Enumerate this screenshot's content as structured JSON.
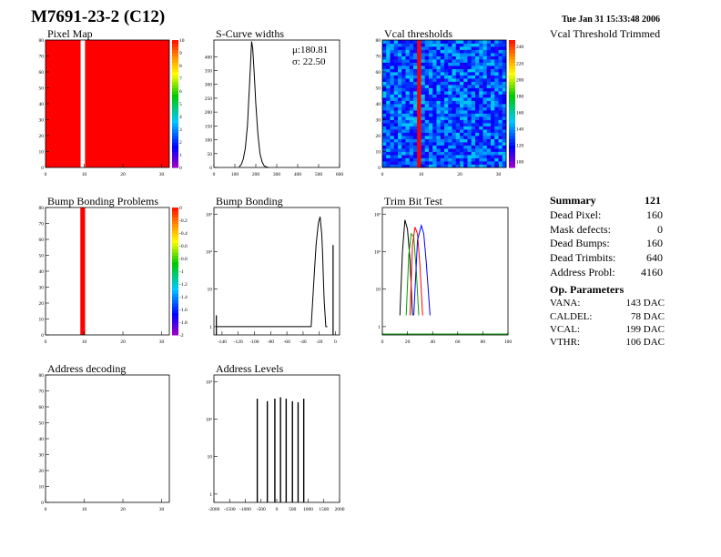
{
  "header": {
    "title": "M7691-23-2 (C12)",
    "timestamp": "Tue Jan 31 15:33:48 2006",
    "vcal_trimmed_label": "Vcal Threshold Trimmed"
  },
  "summary": {
    "heading": "Summary",
    "heading_value": "121",
    "rows": [
      {
        "label": "Dead Pixel:",
        "value": "160"
      },
      {
        "label": "Mask defects:",
        "value": "0"
      },
      {
        "label": "Dead Bumps:",
        "value": "160"
      },
      {
        "label": "Dead Trimbits:",
        "value": "640"
      },
      {
        "label": "Address Probl:",
        "value": "4160"
      }
    ]
  },
  "op_params": {
    "heading": "Op. Parameters",
    "rows": [
      {
        "label": "VANA:",
        "value": "143 DAC"
      },
      {
        "label": "CALDEL:",
        "value": "78 DAC"
      },
      {
        "label": "VCAL:",
        "value": "199 DAC"
      },
      {
        "label": "VTHR:",
        "value": "106 DAC"
      }
    ]
  },
  "colors": {
    "red": "#ff1a1a",
    "blue_field": "#3c6ed6",
    "frame": "#000000"
  },
  "chart_data": [
    {
      "id": "pixel-map",
      "type": "heatmap",
      "title": "Pixel Map",
      "xlim": [
        0,
        32
      ],
      "ylim": [
        0,
        80
      ],
      "x_ticks": [
        "0",
        "10",
        "20",
        "30"
      ],
      "y_ticks": [
        "0",
        "10",
        "20",
        "30",
        "40",
        "50",
        "60",
        "70",
        "80"
      ],
      "z_ticks": [
        "0",
        "1",
        "2",
        "3",
        "4",
        "5",
        "6",
        "7",
        "8",
        "9",
        "10"
      ],
      "zlim": [
        0,
        10
      ],
      "fill_value": 10,
      "empty_columns": [
        9
      ]
    },
    {
      "id": "s-curve",
      "type": "line",
      "title": "S-Curve widths",
      "xlim": [
        0,
        600
      ],
      "ylim": [
        0,
        460
      ],
      "x_ticks": [
        "0",
        "100",
        "200",
        "300",
        "400",
        "500",
        "600"
      ],
      "y_ticks": [
        "0",
        "50",
        "100",
        "150",
        "200",
        "250",
        "300",
        "350",
        "400"
      ],
      "stats": [
        "μ:180.81",
        "σ: 22.50"
      ],
      "x": [
        120,
        130,
        140,
        150,
        160,
        170,
        175,
        180,
        185,
        190,
        195,
        200,
        210,
        220,
        230,
        240,
        250,
        260
      ],
      "y": [
        2,
        10,
        30,
        70,
        150,
        300,
        380,
        455,
        430,
        370,
        300,
        230,
        120,
        50,
        20,
        6,
        2,
        0
      ]
    },
    {
      "id": "vcal-thresholds",
      "type": "heatmap",
      "title": "Vcal thresholds",
      "xlim": [
        0,
        32
      ],
      "ylim": [
        0,
        80
      ],
      "x_ticks": [
        "0",
        "10",
        "20",
        "30"
      ],
      "y_ticks": [
        "0",
        "10",
        "20",
        "30",
        "40",
        "50",
        "60",
        "70",
        "80"
      ],
      "z_ticks": [
        "100",
        "120",
        "140",
        "160",
        "180",
        "200",
        "220",
        "240"
      ],
      "zlim": [
        93,
        248
      ],
      "typical_value": 130,
      "hot_columns": [
        9
      ],
      "hot_value": 248
    },
    {
      "id": "bump-bonding-problems",
      "type": "heatmap",
      "title": "Bump Bonding Problems",
      "xlim": [
        0,
        32
      ],
      "ylim": [
        0,
        80
      ],
      "x_ticks": [
        "0",
        "10",
        "20",
        "30"
      ],
      "y_ticks": [
        "0",
        "10",
        "20",
        "30",
        "40",
        "50",
        "60",
        "70",
        "80"
      ],
      "z_ticks": [
        "0",
        "-0.2",
        "-0.4",
        "-0.6",
        "-0.8",
        "-1",
        "-1.2",
        "-1.4",
        "-1.6",
        "-1.8",
        "-2"
      ],
      "zlim": [
        -2,
        0
      ],
      "filled_columns": [
        9
      ]
    },
    {
      "id": "bump-bonding",
      "type": "line",
      "title": "Bump Bonding",
      "log_y": true,
      "xlim": [
        -150,
        5
      ],
      "ylim": [
        0.6,
        1500
      ],
      "x_ticks": [
        "-140",
        "-120",
        "-100",
        "-80",
        "-60",
        "-40",
        "-20",
        "0"
      ],
      "y_ticks": [
        "1",
        "10",
        "10²",
        "10³"
      ],
      "x": [
        -147,
        -30,
        -26,
        -24,
        -22,
        -21,
        -20,
        -19,
        -18,
        -17,
        -16,
        -15,
        -14,
        -12,
        -10
      ],
      "y": [
        1,
        1,
        30,
        150,
        400,
        600,
        700,
        850,
        500,
        300,
        100,
        20,
        5,
        1,
        1
      ],
      "spikes": [
        {
          "x": -147,
          "y": 2
        },
        {
          "x": -3,
          "y": 150
        }
      ]
    },
    {
      "id": "trim-bit-test",
      "type": "line",
      "title": "Trim Bit Test",
      "log_y": true,
      "xlim": [
        0,
        100
      ],
      "ylim": [
        0.6,
        1500
      ],
      "x_ticks": [
        "0",
        "20",
        "40",
        "60",
        "80",
        "100"
      ],
      "y_ticks": [
        "1",
        "10",
        "10²",
        "10³"
      ],
      "series": [
        {
          "color": "#000000",
          "x": [
            14,
            16,
            18,
            20,
            22,
            24
          ],
          "y": [
            2,
            100,
            700,
            400,
            60,
            2
          ]
        },
        {
          "color": "#00a000",
          "x": [
            19,
            21,
            23,
            25,
            27,
            29
          ],
          "y": [
            2,
            80,
            300,
            250,
            30,
            2
          ]
        },
        {
          "color": "#ff0000",
          "x": [
            22,
            24,
            26,
            28,
            30,
            32
          ],
          "y": [
            2,
            150,
            450,
            300,
            40,
            2
          ]
        },
        {
          "color": "#0000ff",
          "x": [
            25,
            28,
            31,
            33,
            35,
            38
          ],
          "y": [
            2,
            200,
            500,
            300,
            50,
            2
          ]
        }
      ]
    },
    {
      "id": "address-decoding",
      "type": "heatmap",
      "title": "Address decoding",
      "xlim": [
        0,
        32
      ],
      "ylim": [
        0,
        80
      ],
      "x_ticks": [
        "0",
        "10",
        "20",
        "30"
      ],
      "y_ticks": [
        "0",
        "10",
        "20",
        "30",
        "40",
        "50",
        "60",
        "70",
        "80"
      ]
    },
    {
      "id": "address-levels",
      "type": "line",
      "title": "Address Levels",
      "log_y": true,
      "xlim": [
        -2000,
        2000
      ],
      "ylim": [
        0.6,
        1500
      ],
      "x_ticks": [
        "-2000",
        "-1500",
        "-1000",
        "-500",
        "0",
        "500",
        "1000",
        "1500",
        "2000"
      ],
      "y_ticks": [
        "1",
        "10",
        "10²",
        "10³"
      ],
      "peaks": [
        {
          "x": -620,
          "y": 350
        },
        {
          "x": -300,
          "y": 300
        },
        {
          "x": -60,
          "y": 350
        },
        {
          "x": 120,
          "y": 380
        },
        {
          "x": 300,
          "y": 350
        },
        {
          "x": 500,
          "y": 300
        },
        {
          "x": 680,
          "y": 280
        },
        {
          "x": 860,
          "y": 350
        }
      ]
    }
  ]
}
